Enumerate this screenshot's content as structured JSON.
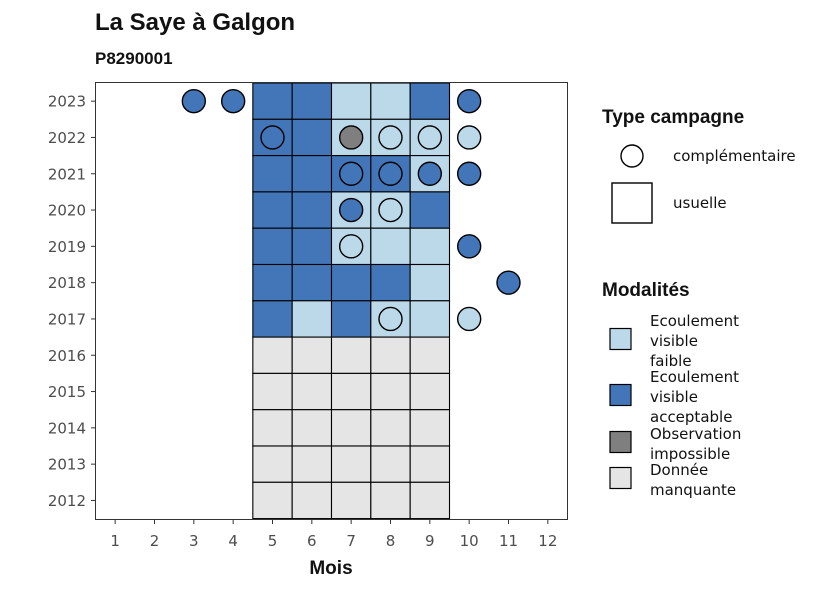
{
  "title": "La Saye à Galgon",
  "subtitle": "P8290001",
  "chart_data": {
    "type": "heatmap",
    "xlabel": "Mois",
    "x_ticks": [
      "1",
      "2",
      "3",
      "4",
      "5",
      "6",
      "7",
      "8",
      "9",
      "10",
      "11",
      "12"
    ],
    "x_range": [
      0.5,
      12.5
    ],
    "y_ticks": [
      "2023",
      "2022",
      "2021",
      "2020",
      "2019",
      "2018",
      "2017",
      "2016",
      "2015",
      "2014",
      "2013",
      "2012"
    ],
    "grid": false,
    "colors": {
      "Ecoulement visible faible": "#bcd9ea",
      "Ecoulement visible acceptable": "#4376b8",
      "Observation impossible": "#7f7f7f",
      "Donnée manquante": "#e5e5e5"
    },
    "tiles": [
      {
        "year": 2023,
        "month": 5,
        "modalite": "Ecoulement visible acceptable"
      },
      {
        "year": 2023,
        "month": 6,
        "modalite": "Ecoulement visible acceptable"
      },
      {
        "year": 2023,
        "month": 7,
        "modalite": "Ecoulement visible faible"
      },
      {
        "year": 2023,
        "month": 8,
        "modalite": "Ecoulement visible faible"
      },
      {
        "year": 2023,
        "month": 9,
        "modalite": "Ecoulement visible acceptable"
      },
      {
        "year": 2022,
        "month": 5,
        "modalite": "Ecoulement visible acceptable"
      },
      {
        "year": 2022,
        "month": 6,
        "modalite": "Ecoulement visible acceptable"
      },
      {
        "year": 2022,
        "month": 7,
        "modalite": "Ecoulement visible faible"
      },
      {
        "year": 2022,
        "month": 8,
        "modalite": "Ecoulement visible faible"
      },
      {
        "year": 2022,
        "month": 9,
        "modalite": "Ecoulement visible faible"
      },
      {
        "year": 2021,
        "month": 5,
        "modalite": "Ecoulement visible acceptable"
      },
      {
        "year": 2021,
        "month": 6,
        "modalite": "Ecoulement visible acceptable"
      },
      {
        "year": 2021,
        "month": 7,
        "modalite": "Ecoulement visible acceptable"
      },
      {
        "year": 2021,
        "month": 8,
        "modalite": "Ecoulement visible acceptable"
      },
      {
        "year": 2021,
        "month": 9,
        "modalite": "Ecoulement visible faible"
      },
      {
        "year": 2020,
        "month": 5,
        "modalite": "Ecoulement visible acceptable"
      },
      {
        "year": 2020,
        "month": 6,
        "modalite": "Ecoulement visible acceptable"
      },
      {
        "year": 2020,
        "month": 7,
        "modalite": "Ecoulement visible faible"
      },
      {
        "year": 2020,
        "month": 8,
        "modalite": "Ecoulement visible faible"
      },
      {
        "year": 2020,
        "month": 9,
        "modalite": "Ecoulement visible acceptable"
      },
      {
        "year": 2019,
        "month": 5,
        "modalite": "Ecoulement visible acceptable"
      },
      {
        "year": 2019,
        "month": 6,
        "modalite": "Ecoulement visible acceptable"
      },
      {
        "year": 2019,
        "month": 7,
        "modalite": "Ecoulement visible faible"
      },
      {
        "year": 2019,
        "month": 8,
        "modalite": "Ecoulement visible faible"
      },
      {
        "year": 2019,
        "month": 9,
        "modalite": "Ecoulement visible faible"
      },
      {
        "year": 2018,
        "month": 5,
        "modalite": "Ecoulement visible acceptable"
      },
      {
        "year": 2018,
        "month": 6,
        "modalite": "Ecoulement visible acceptable"
      },
      {
        "year": 2018,
        "month": 7,
        "modalite": "Ecoulement visible acceptable"
      },
      {
        "year": 2018,
        "month": 8,
        "modalite": "Ecoulement visible acceptable"
      },
      {
        "year": 2018,
        "month": 9,
        "modalite": "Ecoulement visible faible"
      },
      {
        "year": 2017,
        "month": 5,
        "modalite": "Ecoulement visible acceptable"
      },
      {
        "year": 2017,
        "month": 6,
        "modalite": "Ecoulement visible faible"
      },
      {
        "year": 2017,
        "month": 7,
        "modalite": "Ecoulement visible acceptable"
      },
      {
        "year": 2017,
        "month": 8,
        "modalite": "Ecoulement visible faible"
      },
      {
        "year": 2017,
        "month": 9,
        "modalite": "Ecoulement visible faible"
      },
      {
        "year": 2016,
        "month": 5,
        "modalite": "Donnée manquante"
      },
      {
        "year": 2016,
        "month": 6,
        "modalite": "Donnée manquante"
      },
      {
        "year": 2016,
        "month": 7,
        "modalite": "Donnée manquante"
      },
      {
        "year": 2016,
        "month": 8,
        "modalite": "Donnée manquante"
      },
      {
        "year": 2016,
        "month": 9,
        "modalite": "Donnée manquante"
      },
      {
        "year": 2015,
        "month": 5,
        "modalite": "Donnée manquante"
      },
      {
        "year": 2015,
        "month": 6,
        "modalite": "Donnée manquante"
      },
      {
        "year": 2015,
        "month": 7,
        "modalite": "Donnée manquante"
      },
      {
        "year": 2015,
        "month": 8,
        "modalite": "Donnée manquante"
      },
      {
        "year": 2015,
        "month": 9,
        "modalite": "Donnée manquante"
      },
      {
        "year": 2014,
        "month": 5,
        "modalite": "Donnée manquante"
      },
      {
        "year": 2014,
        "month": 6,
        "modalite": "Donnée manquante"
      },
      {
        "year": 2014,
        "month": 7,
        "modalite": "Donnée manquante"
      },
      {
        "year": 2014,
        "month": 8,
        "modalite": "Donnée manquante"
      },
      {
        "year": 2014,
        "month": 9,
        "modalite": "Donnée manquante"
      },
      {
        "year": 2013,
        "month": 5,
        "modalite": "Donnée manquante"
      },
      {
        "year": 2013,
        "month": 6,
        "modalite": "Donnée manquante"
      },
      {
        "year": 2013,
        "month": 7,
        "modalite": "Donnée manquante"
      },
      {
        "year": 2013,
        "month": 8,
        "modalite": "Donnée manquante"
      },
      {
        "year": 2013,
        "month": 9,
        "modalite": "Donnée manquante"
      },
      {
        "year": 2012,
        "month": 5,
        "modalite": "Donnée manquante"
      },
      {
        "year": 2012,
        "month": 6,
        "modalite": "Donnée manquante"
      },
      {
        "year": 2012,
        "month": 7,
        "modalite": "Donnée manquante"
      },
      {
        "year": 2012,
        "month": 8,
        "modalite": "Donnée manquante"
      },
      {
        "year": 2012,
        "month": 9,
        "modalite": "Donnée manquante"
      }
    ],
    "points": [
      {
        "year": 2023,
        "month": 3,
        "modalite": "Ecoulement visible acceptable"
      },
      {
        "year": 2023,
        "month": 4,
        "modalite": "Ecoulement visible acceptable"
      },
      {
        "year": 2023,
        "month": 10,
        "modalite": "Ecoulement visible acceptable"
      },
      {
        "year": 2022,
        "month": 5,
        "modalite": "Ecoulement visible acceptable"
      },
      {
        "year": 2022,
        "month": 7,
        "modalite": "Observation impossible"
      },
      {
        "year": 2022,
        "month": 8,
        "modalite": "Ecoulement visible faible"
      },
      {
        "year": 2022,
        "month": 9,
        "modalite": "Ecoulement visible faible"
      },
      {
        "year": 2022,
        "month": 10,
        "modalite": "Ecoulement visible faible"
      },
      {
        "year": 2021,
        "month": 7,
        "modalite": "Ecoulement visible acceptable"
      },
      {
        "year": 2021,
        "month": 8,
        "modalite": "Ecoulement visible acceptable"
      },
      {
        "year": 2021,
        "month": 9,
        "modalite": "Ecoulement visible acceptable"
      },
      {
        "year": 2021,
        "month": 10,
        "modalite": "Ecoulement visible acceptable"
      },
      {
        "year": 2020,
        "month": 7,
        "modalite": "Ecoulement visible acceptable"
      },
      {
        "year": 2020,
        "month": 8,
        "modalite": "Ecoulement visible faible"
      },
      {
        "year": 2019,
        "month": 7,
        "modalite": "Ecoulement visible faible"
      },
      {
        "year": 2019,
        "month": 10,
        "modalite": "Ecoulement visible acceptable"
      },
      {
        "year": 2018,
        "month": 11,
        "modalite": "Ecoulement visible acceptable"
      },
      {
        "year": 2017,
        "month": 8,
        "modalite": "Ecoulement visible faible"
      },
      {
        "year": 2017,
        "month": 10,
        "modalite": "Ecoulement visible faible"
      }
    ],
    "legend_type": {
      "title": "Type campagne",
      "items": [
        {
          "label": "complémentaire",
          "shape": "circle"
        },
        {
          "label": "usuelle",
          "shape": "square"
        }
      ]
    },
    "legend_modalites": {
      "title": "Modalités",
      "items": [
        {
          "lines": [
            "Ecoulement",
            "visible",
            "faible"
          ],
          "modalite": "Ecoulement visible faible"
        },
        {
          "lines": [
            "Ecoulement",
            "visible",
            "acceptable"
          ],
          "modalite": "Ecoulement visible acceptable"
        },
        {
          "lines": [
            "Observation",
            "impossible"
          ],
          "modalite": "Observation impossible"
        },
        {
          "lines": [
            "Donnée",
            "manquante"
          ],
          "modalite": "Donnée manquante"
        }
      ]
    },
    "legend_placement": "right"
  }
}
